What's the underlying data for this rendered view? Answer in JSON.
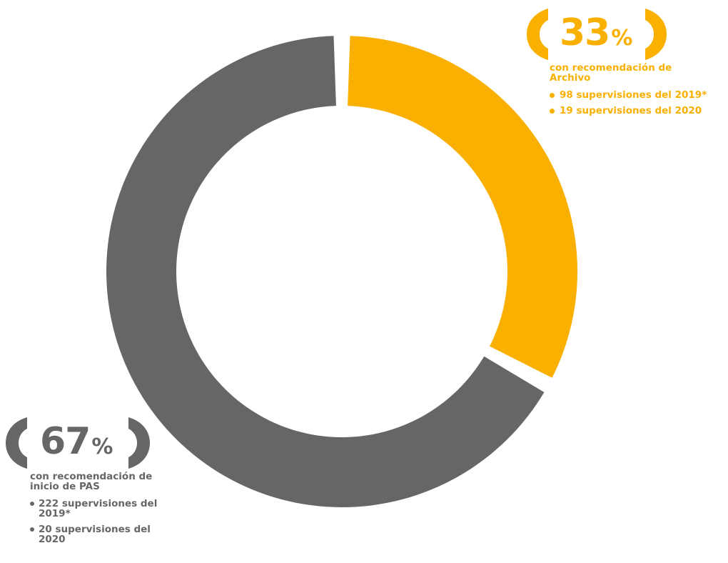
{
  "chart_data": {
    "type": "pie",
    "style": "donut",
    "slices": [
      {
        "label": "Archivo",
        "value": 33,
        "color": "#f9b000",
        "pct_text": "33",
        "description": "con recomendación de Archivo",
        "details": [
          "98 supervisiones del 2019*",
          "19 supervisiones del 2020"
        ]
      },
      {
        "label": "inicio de PAS",
        "value": 67,
        "color": "#666666",
        "pct_text": "67",
        "description": "con recomendación de inicio de PAS",
        "details": [
          "222 supervisiones del 2019*",
          "20 supervisiones del 2020"
        ]
      }
    ],
    "percent_symbol": "%"
  }
}
